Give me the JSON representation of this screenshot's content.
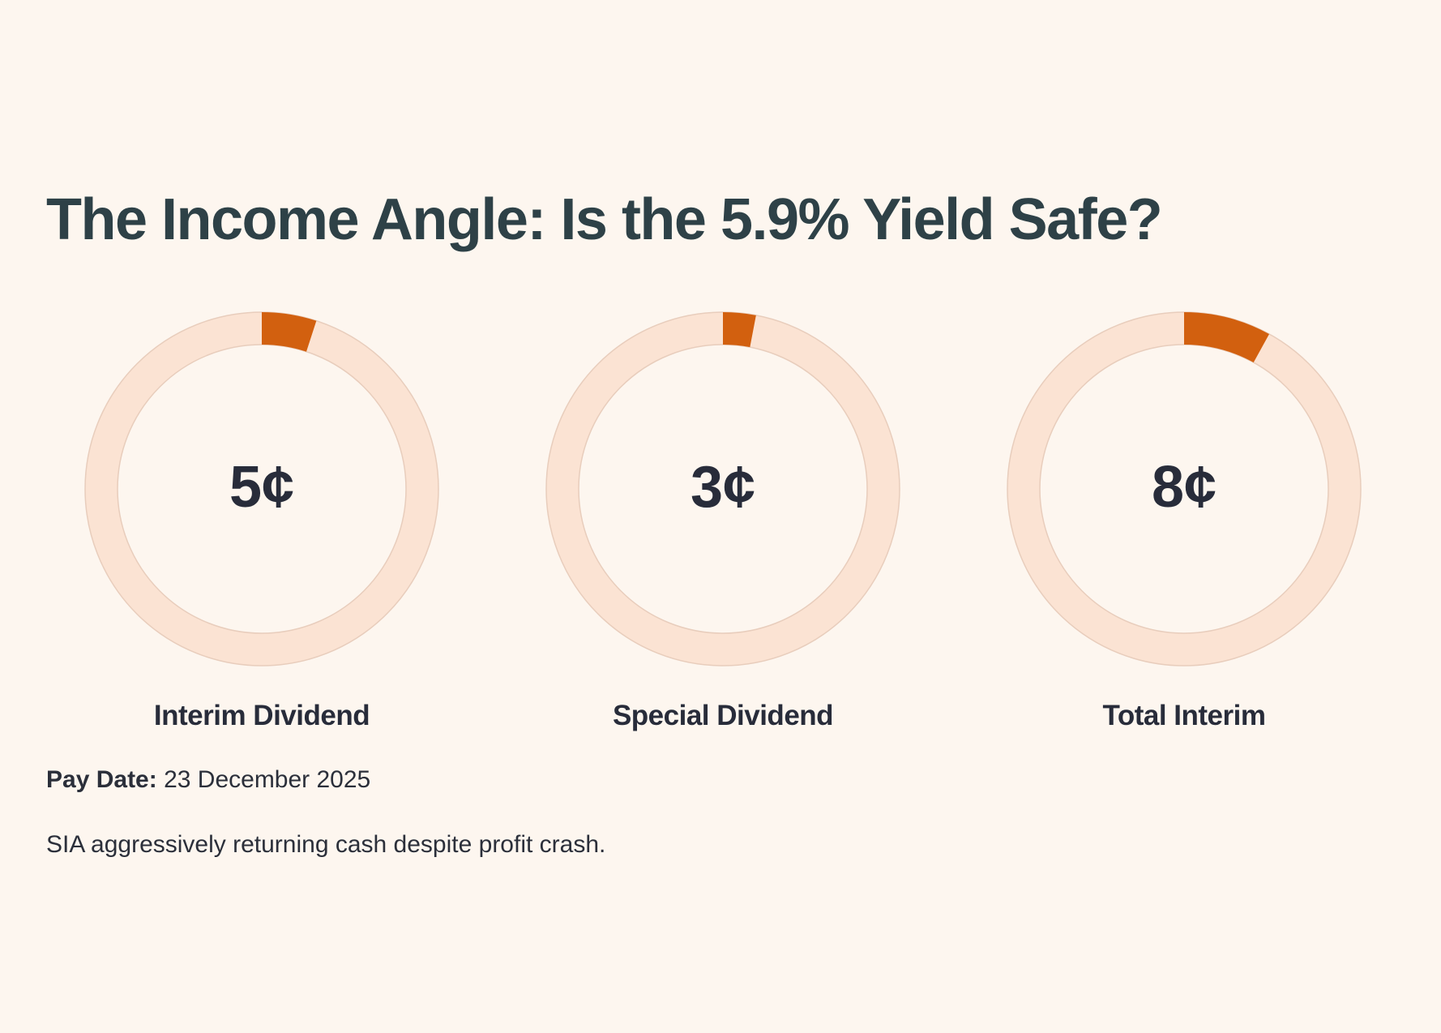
{
  "header": {
    "title": "The Income Angle: Is the 5.9% Yield Safe?"
  },
  "colors": {
    "background": "#fdf6ef",
    "track": "#fbe3d3",
    "track_stroke": "#e8cdbc",
    "accent": "#d2600f",
    "title": "#2e4147",
    "text": "#282c3a"
  },
  "chart_data": {
    "type": "pie",
    "title": "The Income Angle: Is the 5.9% Yield Safe?",
    "unit": "¢",
    "gauges": [
      {
        "label": "Interim Dividend",
        "display": "5¢",
        "value": 5,
        "fill_fraction": 0.05
      },
      {
        "label": "Special Dividend",
        "display": "3¢",
        "value": 3,
        "fill_fraction": 0.03
      },
      {
        "label": "Total Interim",
        "display": "8¢",
        "value": 8,
        "fill_fraction": 0.08
      }
    ]
  },
  "footer": {
    "pay_date_label": "Pay Date:",
    "pay_date_value": "23 December 2025",
    "note": "SIA aggressively returning cash despite profit crash."
  }
}
